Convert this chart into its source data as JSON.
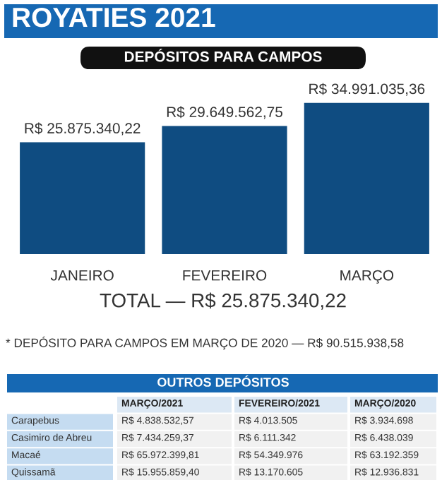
{
  "chart_data": [
    {
      "type": "bar",
      "title": "ROYATIES 2021",
      "subtitle": "DEPÓSITOS PARA CAMPOS",
      "categories": [
        "JANEIRO",
        "FEVEREIRO",
        "MARÇO"
      ],
      "values": [
        25875340.22,
        29649562.75,
        34991035.36
      ],
      "value_labels": [
        "R$ 25.875.340,22",
        "R$ 29.649.562,75",
        "R$ 34.991.035,36"
      ],
      "color": "#0f4c81",
      "annotations": [
        "TOTAL — R$ 25.875.340,22",
        "* DEPÓSITO PARA CAMPOS EM MARÇO DE 2020 — R$ 90.515.938,58"
      ]
    },
    {
      "type": "other",
      "title": "OUTROS DEPÓSITOS",
      "categories": [
        null,
        "MARÇO/2021",
        "FEVEREIRO/2021",
        "MARÇO/2020"
      ],
      "y_categories": [
        "Carapebus",
        "Casimiro de Abreu",
        "Macaé",
        "Quissamã"
      ],
      "cell_labels": [
        [
          "R$ 4.838.532,57",
          "R$ 4.013.505",
          "R$ 3.934.698"
        ],
        [
          "R$ 7.434.259,37",
          "R$ 6.111.342",
          "R$ 6.438.039"
        ],
        [
          "R$ 65.972.399,81",
          "R$ 54.349.976",
          "R$ 63.192.359"
        ],
        [
          "R$ 15.955.859,40",
          "R$ 13.170.605",
          "R$ 12.936.831"
        ]
      ]
    }
  ]
}
